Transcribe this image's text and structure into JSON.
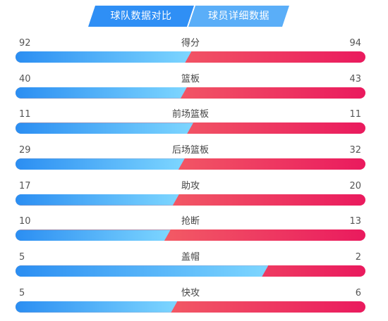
{
  "tabs": {
    "team_compare": "球队数据对比",
    "player_detail": "球员详细数据"
  },
  "colors": {
    "left_team_bar": "#2b8ef2",
    "right_team_bar": "#ea1a5e",
    "tab_active": "#2f8ff5"
  },
  "stats": [
    {
      "label": "得分",
      "left": 92,
      "right": 94
    },
    {
      "label": "篮板",
      "left": 40,
      "right": 43
    },
    {
      "label": "前场篮板",
      "left": 11,
      "right": 11
    },
    {
      "label": "后场篮板",
      "left": 29,
      "right": 32
    },
    {
      "label": "助攻",
      "left": 17,
      "right": 20
    },
    {
      "label": "抢断",
      "left": 10,
      "right": 13
    },
    {
      "label": "盖帽",
      "left": 5,
      "right": 2
    },
    {
      "label": "快攻",
      "left": 5,
      "right": 6
    }
  ]
}
